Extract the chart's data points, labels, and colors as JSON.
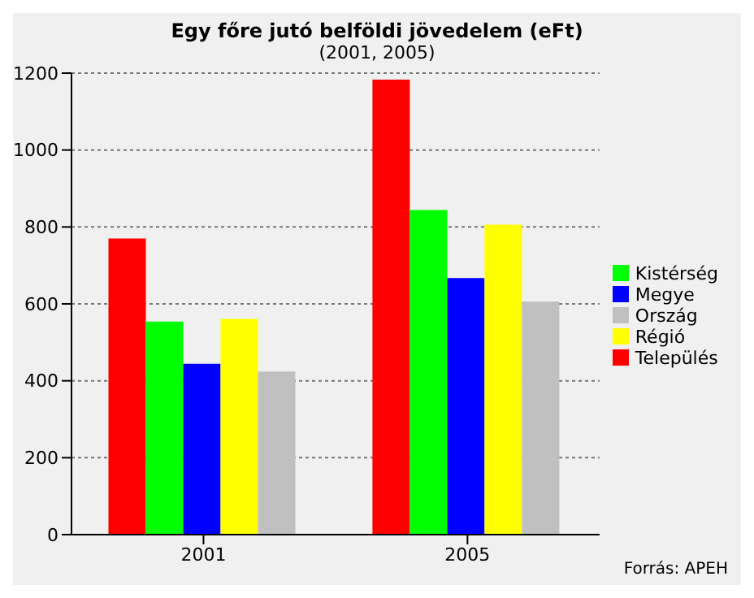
{
  "chart_data": {
    "type": "bar",
    "title": "Egy főre jutó belföldi jövedelem (eFt)",
    "subtitle": "(2001, 2005)",
    "categories": [
      "2001",
      "2005"
    ],
    "series": [
      {
        "name": "Település",
        "color": "#ff0000",
        "values": [
          770,
          1183
        ]
      },
      {
        "name": "Kistérség",
        "color": "#00ff00",
        "values": [
          554,
          844
        ]
      },
      {
        "name": "Megye",
        "color": "#0000ff",
        "values": [
          444,
          667
        ]
      },
      {
        "name": "Régió",
        "color": "#ffff00",
        "values": [
          561,
          806
        ]
      },
      {
        "name": "Ország",
        "color": "#c0c0c0",
        "values": [
          424,
          606
        ]
      }
    ],
    "ylim": [
      0,
      1200
    ],
    "yticks": [
      0,
      200,
      400,
      600,
      800,
      1000,
      1200
    ],
    "grid": "y",
    "legend": "right",
    "annotations": [
      "Forrás: APEH"
    ]
  }
}
